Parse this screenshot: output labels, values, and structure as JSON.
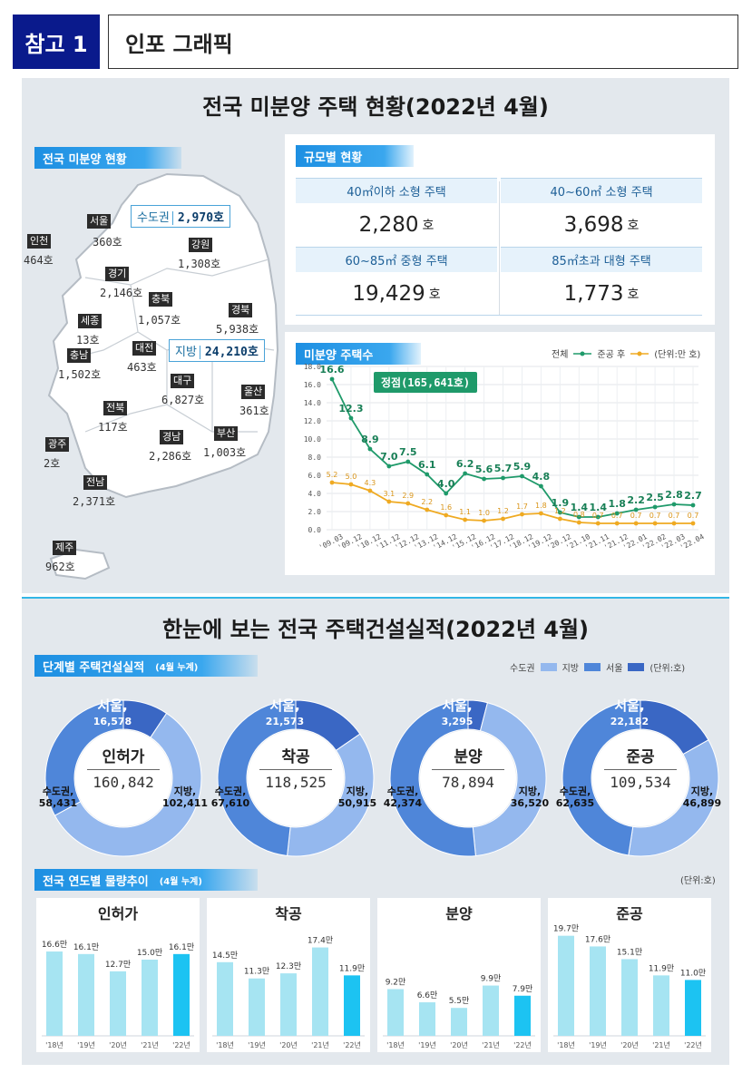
{
  "header": {
    "tag": "참고 1",
    "title": "인포 그래픽"
  },
  "section1": {
    "title": "전국 미분양 주택 현황(2022년 4월)",
    "map_tag": "전국 미분양 현황",
    "capital_box": {
      "label": "수도권",
      "value": "2,970호"
    },
    "local_box": {
      "label": "지방",
      "value": "24,210호"
    },
    "regions": [
      {
        "name": "서울",
        "value": "360호"
      },
      {
        "name": "인천",
        "value": "464호"
      },
      {
        "name": "경기",
        "value": "2,146호"
      },
      {
        "name": "강원",
        "value": "1,308호"
      },
      {
        "name": "충북",
        "value": "1,057호"
      },
      {
        "name": "세종",
        "value": "13호"
      },
      {
        "name": "경북",
        "value": "5,938호"
      },
      {
        "name": "충남",
        "value": "1,502호"
      },
      {
        "name": "대전",
        "value": "463호"
      },
      {
        "name": "대구",
        "value": "6,827호"
      },
      {
        "name": "울산",
        "value": "361호"
      },
      {
        "name": "전북",
        "value": "117호"
      },
      {
        "name": "경남",
        "value": "2,286호"
      },
      {
        "name": "부산",
        "value": "1,003호"
      },
      {
        "name": "광주",
        "value": "2호"
      },
      {
        "name": "전남",
        "value": "2,371호"
      },
      {
        "name": "제주",
        "value": "962호"
      }
    ],
    "size_tag": "규모별 현황",
    "sizes": [
      {
        "label": "40㎡이하 소형 주택",
        "value": "2,280",
        "unit": "호"
      },
      {
        "label": "40~60㎡ 소형 주택",
        "value": "3,698",
        "unit": "호"
      },
      {
        "label": "60~85㎡ 중형 주택",
        "value": "19,429",
        "unit": "호"
      },
      {
        "label": "85㎡초과 대형 주택",
        "value": "1,773",
        "unit": "호"
      }
    ],
    "trend_tag": "미분양 주택수",
    "trend_legend": {
      "total": "전체",
      "after": "준공 후",
      "unit": "(단위:만 호)"
    },
    "peak_label": "정점(165,641호)"
  },
  "section2": {
    "title": "한눈에 보는 전국 주택건설실적(2022년 4월)",
    "stage_tag": "단계별 주택건설실적",
    "stage_tag_note": "(4월 누계)",
    "legend": {
      "capital": "수도권",
      "local": "지방",
      "seoul": "서울",
      "unit": "(단위:호)"
    },
    "yearly_tag": "전국 연도별 물량추이",
    "yearly_tag_note": "(4월 누계)",
    "yearly_unit": "(단위:호)"
  },
  "colors": {
    "capital": "#4f86d9",
    "local": "#94b8ee",
    "seoul": "#3a67c4",
    "total_line": "#1f9a6a",
    "after_line": "#efaa22",
    "bar": "#a6e4f2",
    "bar_last": "#1cc3f2"
  },
  "chart_data": [
    {
      "type": "line",
      "x": [
        "'09.03",
        "'09.12",
        "'10.12",
        "'11.12",
        "'12.12",
        "'13.12",
        "'14.12",
        "'15.12",
        "'16.12",
        "'17.12",
        "'18.12",
        "'19.12",
        "'20.12",
        "'21.10",
        "'21.11",
        "'21.12",
        "'22.01",
        "'22.02",
        "'22.03",
        "'22.04"
      ],
      "series": [
        {
          "name": "전체",
          "values": [
            16.6,
            12.3,
            8.9,
            7.0,
            7.5,
            6.1,
            4.0,
            6.2,
            5.6,
            5.7,
            5.9,
            4.8,
            1.9,
            1.4,
            1.4,
            1.8,
            2.2,
            2.5,
            2.8,
            2.7
          ]
        },
        {
          "name": "준공 후",
          "values": [
            5.2,
            5.0,
            4.3,
            3.1,
            2.9,
            2.2,
            1.6,
            1.1,
            1.0,
            1.2,
            1.7,
            1.8,
            1.2,
            0.8,
            0.7,
            0.7,
            0.7,
            0.7,
            0.7,
            0.7
          ]
        }
      ],
      "yticks": [
        "0.0",
        "2.0",
        "4.0",
        "6.0",
        "8.0",
        "10.0",
        "12.0",
        "14.0",
        "16.0",
        "18.0"
      ],
      "ylim": [
        0,
        18
      ],
      "grid": true
    },
    {
      "type": "pie",
      "name": "인허가",
      "total": "160,842",
      "slices": [
        {
          "label": "서울,",
          "value": 16578,
          "text": "16,578"
        },
        {
          "label": "지방,",
          "value": 102411,
          "text": "102,411"
        },
        {
          "label": "수도권,",
          "value": 58431,
          "text": "58,431"
        }
      ]
    },
    {
      "type": "pie",
      "name": "착공",
      "total": "118,525",
      "slices": [
        {
          "label": "서울,",
          "value": 21573,
          "text": "21,573"
        },
        {
          "label": "지방,",
          "value": 50915,
          "text": "50,915"
        },
        {
          "label": "수도권,",
          "value": 67610,
          "text": "67,610"
        }
      ]
    },
    {
      "type": "pie",
      "name": "분양",
      "total": "78,894",
      "slices": [
        {
          "label": "서울,",
          "value": 3295,
          "text": "3,295"
        },
        {
          "label": "지방,",
          "value": 36520,
          "text": "36,520"
        },
        {
          "label": "수도권,",
          "value": 42374,
          "text": "42,374"
        }
      ]
    },
    {
      "type": "pie",
      "name": "준공",
      "total": "109,534",
      "slices": [
        {
          "label": "서울,",
          "value": 22182,
          "text": "22,182"
        },
        {
          "label": "지방,",
          "value": 46899,
          "text": "46,899"
        },
        {
          "label": "수도권,",
          "value": 62635,
          "text": "62,635"
        }
      ]
    },
    {
      "type": "bar",
      "name": "인허가",
      "categories": [
        "'18년",
        "'19년",
        "'20년",
        "'21년",
        "'22년"
      ],
      "values": [
        16.6,
        16.1,
        12.7,
        15.0,
        16.1
      ],
      "labels": [
        "16.6만",
        "16.1만",
        "12.7만",
        "15.0만",
        "16.1만"
      ]
    },
    {
      "type": "bar",
      "name": "착공",
      "categories": [
        "'18년",
        "'19년",
        "'20년",
        "'21년",
        "'22년"
      ],
      "values": [
        14.5,
        11.3,
        12.3,
        17.4,
        11.9
      ],
      "labels": [
        "14.5만",
        "11.3만",
        "12.3만",
        "17.4만",
        "11.9만"
      ]
    },
    {
      "type": "bar",
      "name": "분양",
      "categories": [
        "'18년",
        "'19년",
        "'20년",
        "'21년",
        "'22년"
      ],
      "values": [
        9.2,
        6.6,
        5.5,
        9.9,
        7.9
      ],
      "labels": [
        "9.2만",
        "6.6만",
        "5.5만",
        "9.9만",
        "7.9만"
      ]
    },
    {
      "type": "bar",
      "name": "준공",
      "categories": [
        "'18년",
        "'19년",
        "'20년",
        "'21년",
        "'22년"
      ],
      "values": [
        19.7,
        17.6,
        15.1,
        11.9,
        11.0
      ],
      "labels": [
        "19.7만",
        "17.6만",
        "15.1만",
        "11.9만",
        "11.0만"
      ]
    }
  ]
}
